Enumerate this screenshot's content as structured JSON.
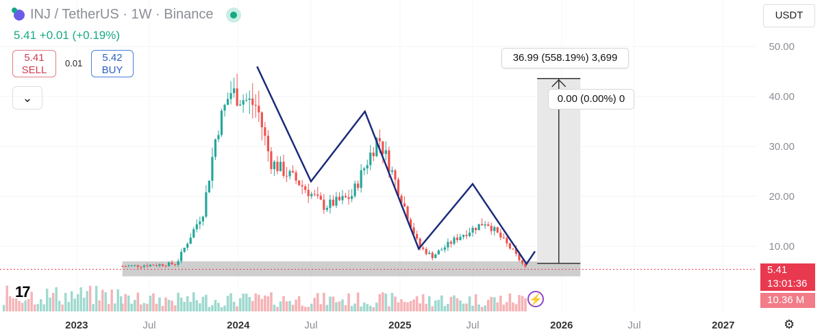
{
  "header": {
    "symbol": "INJ / TetherUS · 1W · Binance",
    "price_line": "5.41  +0.01 (+0.19%)",
    "sell_price": "5.41",
    "sell_label": "SELL",
    "spread": "0.01",
    "buy_price": "5.42",
    "buy_label": "BUY",
    "collapse_icon": "chevron-down-icon"
  },
  "currency": "USDT",
  "price_tag": "5.41",
  "countdown": "13:01:36",
  "volume_tag": "10.36 M",
  "colors": {
    "up": "#26a69a",
    "down": "#ef5350",
    "pattern": "#1a2a7a",
    "sell": "#d0394f",
    "buy": "#2c5fc4"
  },
  "chart_data": {
    "type": "candlestick",
    "title": "INJ / TetherUS · 1W · Binance",
    "timeframe": "1W",
    "y_axis": {
      "ticks": [
        10,
        20,
        30,
        40,
        50
      ],
      "labels": [
        "10.00",
        "20.00",
        "30.00",
        "40.00",
        "50.00"
      ],
      "range": [
        0,
        55
      ]
    },
    "x_axis": {
      "labels": [
        "2023",
        "Jul",
        "2024",
        "Jul",
        "2025",
        "Jul",
        "2026",
        "Jul",
        "2027"
      ]
    },
    "price_anchors": [
      {
        "t": "2023-05",
        "v": 6
      },
      {
        "t": "2023-09",
        "v": 6.5
      },
      {
        "t": "2023-11",
        "v": 17
      },
      {
        "t": "2023-12",
        "v": 33
      },
      {
        "t": "2024-01",
        "v": 41
      },
      {
        "t": "2024-03",
        "v": 38
      },
      {
        "t": "2024-04",
        "v": 27
      },
      {
        "t": "2024-06",
        "v": 23
      },
      {
        "t": "2024-08",
        "v": 18
      },
      {
        "t": "2024-10",
        "v": 20
      },
      {
        "t": "2024-12",
        "v": 32
      },
      {
        "t": "2025-01",
        "v": 25
      },
      {
        "t": "2025-03",
        "v": 10
      },
      {
        "t": "2025-04",
        "v": 8
      },
      {
        "t": "2025-06",
        "v": 12
      },
      {
        "t": "2025-08",
        "v": 15
      },
      {
        "t": "2025-10",
        "v": 9
      },
      {
        "t": "2025-11",
        "v": 5.41
      }
    ],
    "pattern_points": [
      {
        "t": "2024-03",
        "v": 46
      },
      {
        "t": "2024-07",
        "v": 23
      },
      {
        "t": "2024-11",
        "v": 37
      },
      {
        "t": "2025-03",
        "v": 9.5
      },
      {
        "t": "2025-07",
        "v": 22.5
      },
      {
        "t": "2025-11",
        "v": 6.5
      },
      {
        "t": "2025-11-20",
        "v": 9
      }
    ],
    "support_zone": {
      "low": 4,
      "high": 7
    },
    "measure": {
      "from": 6.6,
      "to": 43.6,
      "label_top": "36.99 (558.19%) 3,699",
      "label_bottom": "0.00 (0.00%) 0"
    },
    "last_price": 5.41,
    "last_volume": "10.36 M"
  }
}
